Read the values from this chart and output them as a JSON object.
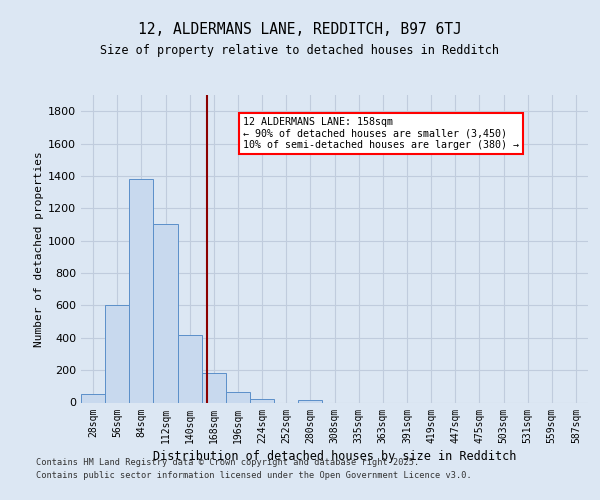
{
  "title1": "12, ALDERMANS LANE, REDDITCH, B97 6TJ",
  "title2": "Size of property relative to detached houses in Redditch",
  "xlabel": "Distribution of detached houses by size in Redditch",
  "ylabel": "Number of detached properties",
  "bar_color": "#c8d9ee",
  "bar_edge_color": "#5b8fc9",
  "background_color": "#dce7f3",
  "plot_bg_color": "#dce7f3",
  "grid_color": "#c0ccdd",
  "categories": [
    "28sqm",
    "56sqm",
    "84sqm",
    "112sqm",
    "140sqm",
    "168sqm",
    "196sqm",
    "224sqm",
    "252sqm",
    "280sqm",
    "308sqm",
    "335sqm",
    "363sqm",
    "391sqm",
    "419sqm",
    "447sqm",
    "475sqm",
    "503sqm",
    "531sqm",
    "559sqm",
    "587sqm"
  ],
  "values": [
    50,
    600,
    1380,
    1100,
    420,
    180,
    65,
    20,
    0,
    15,
    0,
    0,
    0,
    0,
    0,
    0,
    0,
    0,
    0,
    0,
    0
  ],
  "vline_x": 4.72,
  "vline_color": "#8b0000",
  "annotation_text": "12 ALDERMANS LANE: 158sqm\n← 90% of detached houses are smaller (3,450)\n10% of semi-detached houses are larger (380) →",
  "ylim": [
    0,
    1900
  ],
  "yticks": [
    0,
    200,
    400,
    600,
    800,
    1000,
    1200,
    1400,
    1600,
    1800
  ],
  "footer1": "Contains HM Land Registry data © Crown copyright and database right 2025.",
  "footer2": "Contains public sector information licensed under the Open Government Licence v3.0."
}
